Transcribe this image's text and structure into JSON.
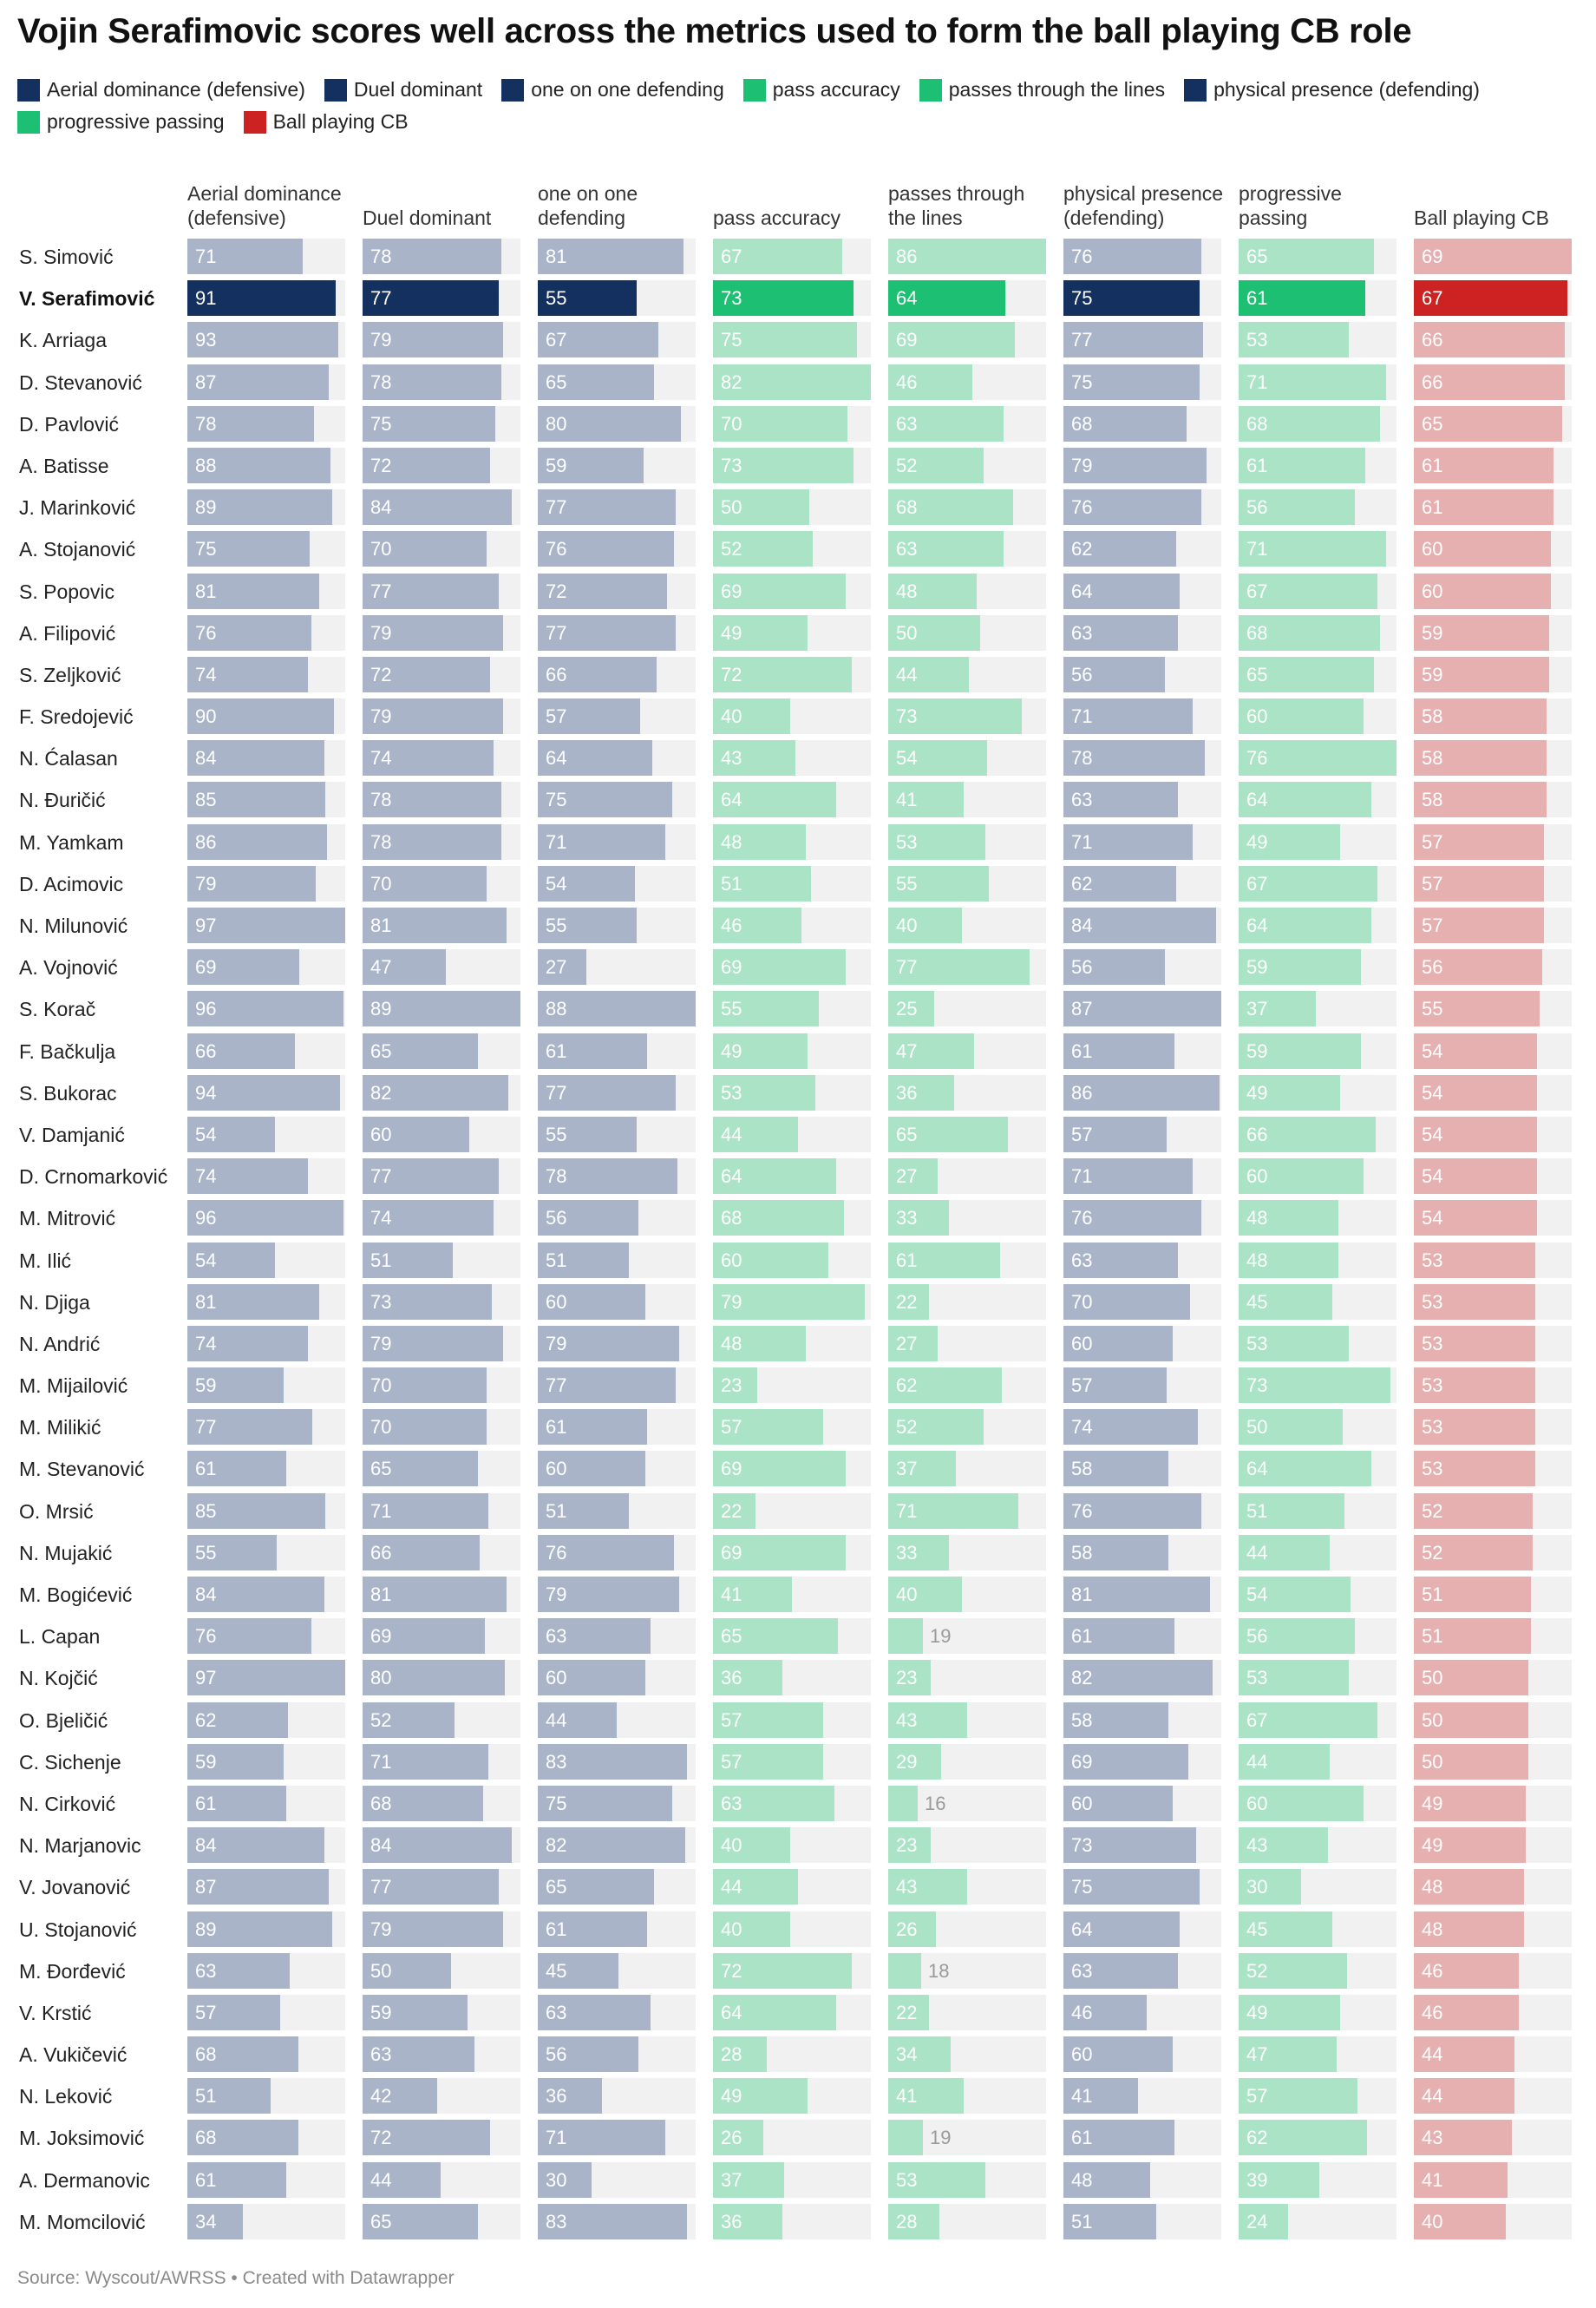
{
  "title": "Vojin Serafimovic scores well across the metrics used to form the ball playing CB role",
  "source": "Source: Wyscout/AWRSS • Created with Datawrapper",
  "colors": {
    "dark_navy": "#14305e",
    "muted_navy": "#aab4c8",
    "bright_green": "#1dbf73",
    "muted_green": "#abe3c6",
    "bright_red": "#cc2222",
    "muted_red": "#e6b0b0",
    "track": "#f1f1f1"
  },
  "legend": [
    {
      "label": "Aerial dominance (defensive)",
      "color": "#14305e"
    },
    {
      "label": "Duel dominant",
      "color": "#14305e"
    },
    {
      "label": "one on one defending",
      "color": "#14305e"
    },
    {
      "label": "pass accuracy",
      "color": "#1dbf73"
    },
    {
      "label": "passes through the lines",
      "color": "#1dbf73"
    },
    {
      "label": "physical presence (defending)",
      "color": "#14305e"
    },
    {
      "label": "progressive passing",
      "color": "#1dbf73"
    },
    {
      "label": "Ball playing CB",
      "color": "#cc2222"
    }
  ],
  "chart_data": {
    "type": "table",
    "highlight_player": "V. Serafimović",
    "columns": [
      {
        "label": "Aerial dominance (defensive)",
        "group": "defending",
        "max": 97
      },
      {
        "label": "Duel dominant",
        "group": "defending",
        "max": 89
      },
      {
        "label": "one on one defending",
        "group": "defending",
        "max": 88
      },
      {
        "label": "pass accuracy",
        "group": "passing",
        "max": 82
      },
      {
        "label": "passes through the lines",
        "group": "passing",
        "max": 86
      },
      {
        "label": "physical presence (defending)",
        "group": "defending",
        "max": 87
      },
      {
        "label": "progressive passing",
        "group": "passing",
        "max": 76
      },
      {
        "label": "Ball playing CB",
        "group": "role",
        "max": 69
      }
    ],
    "rows": [
      {
        "name": "S. Simović",
        "values": [
          71,
          78,
          81,
          67,
          86,
          76,
          65,
          69
        ]
      },
      {
        "name": "V. Serafimović",
        "values": [
          91,
          77,
          55,
          73,
          64,
          75,
          61,
          67
        ]
      },
      {
        "name": "K. Arriaga",
        "values": [
          93,
          79,
          67,
          75,
          69,
          77,
          53,
          66
        ]
      },
      {
        "name": "D. Stevanović",
        "values": [
          87,
          78,
          65,
          82,
          46,
          75,
          71,
          66
        ]
      },
      {
        "name": "D. Pavlović",
        "values": [
          78,
          75,
          80,
          70,
          63,
          68,
          68,
          65
        ]
      },
      {
        "name": "A. Batisse",
        "values": [
          88,
          72,
          59,
          73,
          52,
          79,
          61,
          61
        ]
      },
      {
        "name": "J. Marinković",
        "values": [
          89,
          84,
          77,
          50,
          68,
          76,
          56,
          61
        ]
      },
      {
        "name": "A. Stojanović",
        "values": [
          75,
          70,
          76,
          52,
          63,
          62,
          71,
          60
        ]
      },
      {
        "name": "S. Popovic",
        "values": [
          81,
          77,
          72,
          69,
          48,
          64,
          67,
          60
        ]
      },
      {
        "name": "A. Filipović",
        "values": [
          76,
          79,
          77,
          49,
          50,
          63,
          68,
          59
        ]
      },
      {
        "name": "S. Zeljković",
        "values": [
          74,
          72,
          66,
          72,
          44,
          56,
          65,
          59
        ]
      },
      {
        "name": "F. Sredojević",
        "values": [
          90,
          79,
          57,
          40,
          73,
          71,
          60,
          58
        ]
      },
      {
        "name": "N. Ćalasan",
        "values": [
          84,
          74,
          64,
          43,
          54,
          78,
          76,
          58
        ]
      },
      {
        "name": "N. Đuričić",
        "values": [
          85,
          78,
          75,
          64,
          41,
          63,
          64,
          58
        ]
      },
      {
        "name": "M. Yamkam",
        "values": [
          86,
          78,
          71,
          48,
          53,
          71,
          49,
          57
        ]
      },
      {
        "name": "D. Acimovic",
        "values": [
          79,
          70,
          54,
          51,
          55,
          62,
          67,
          57
        ]
      },
      {
        "name": "N. Milunović",
        "values": [
          97,
          81,
          55,
          46,
          40,
          84,
          64,
          57
        ]
      },
      {
        "name": "A. Vojnović",
        "values": [
          69,
          47,
          27,
          69,
          77,
          56,
          59,
          56
        ]
      },
      {
        "name": "S. Korač",
        "values": [
          96,
          89,
          88,
          55,
          25,
          87,
          37,
          55
        ]
      },
      {
        "name": "F. Bačkulja",
        "values": [
          66,
          65,
          61,
          49,
          47,
          61,
          59,
          54
        ]
      },
      {
        "name": "S. Bukorac",
        "values": [
          94,
          82,
          77,
          53,
          36,
          86,
          49,
          54
        ]
      },
      {
        "name": "V. Damjanić",
        "values": [
          54,
          60,
          55,
          44,
          65,
          57,
          66,
          54
        ]
      },
      {
        "name": "D. Crnomarković",
        "values": [
          74,
          77,
          78,
          64,
          27,
          71,
          60,
          54
        ]
      },
      {
        "name": "M. Mitrović",
        "values": [
          96,
          74,
          56,
          68,
          33,
          76,
          48,
          54
        ]
      },
      {
        "name": "M. Ilić",
        "values": [
          54,
          51,
          51,
          60,
          61,
          63,
          48,
          53
        ]
      },
      {
        "name": "N. Djiga",
        "values": [
          81,
          73,
          60,
          79,
          22,
          70,
          45,
          53
        ]
      },
      {
        "name": "N. Andrić",
        "values": [
          74,
          79,
          79,
          48,
          27,
          60,
          53,
          53
        ]
      },
      {
        "name": "M. Mijailović",
        "values": [
          59,
          70,
          77,
          23,
          62,
          57,
          73,
          53
        ]
      },
      {
        "name": "M. Milikić",
        "values": [
          77,
          70,
          61,
          57,
          52,
          74,
          50,
          53
        ]
      },
      {
        "name": "M. Stevanović",
        "values": [
          61,
          65,
          60,
          69,
          37,
          58,
          64,
          53
        ]
      },
      {
        "name": "O. Mrsić",
        "values": [
          85,
          71,
          51,
          22,
          71,
          76,
          51,
          52
        ]
      },
      {
        "name": "N. Mujakić",
        "values": [
          55,
          66,
          76,
          69,
          33,
          58,
          44,
          52
        ]
      },
      {
        "name": "M. Bogićević",
        "values": [
          84,
          81,
          79,
          41,
          40,
          81,
          54,
          51
        ]
      },
      {
        "name": "L. Capan",
        "values": [
          76,
          69,
          63,
          65,
          19,
          61,
          56,
          51
        ]
      },
      {
        "name": "N. Kojčić",
        "values": [
          97,
          80,
          60,
          36,
          23,
          82,
          53,
          50
        ]
      },
      {
        "name": "O. Bjeličić",
        "values": [
          62,
          52,
          44,
          57,
          43,
          58,
          67,
          50
        ]
      },
      {
        "name": "C. Sichenje",
        "values": [
          59,
          71,
          83,
          57,
          29,
          69,
          44,
          50
        ]
      },
      {
        "name": "N. Cirković",
        "values": [
          61,
          68,
          75,
          63,
          16,
          60,
          60,
          49
        ]
      },
      {
        "name": "N. Marjanovic",
        "values": [
          84,
          84,
          82,
          40,
          23,
          73,
          43,
          49
        ]
      },
      {
        "name": "V. Jovanović",
        "values": [
          87,
          77,
          65,
          44,
          43,
          75,
          30,
          48
        ]
      },
      {
        "name": "U. Stojanović",
        "values": [
          89,
          79,
          61,
          40,
          26,
          64,
          45,
          48
        ]
      },
      {
        "name": "M. Đorđević",
        "values": [
          63,
          50,
          45,
          72,
          18,
          63,
          52,
          46
        ]
      },
      {
        "name": "V. Krstić",
        "values": [
          57,
          59,
          63,
          64,
          22,
          46,
          49,
          46
        ]
      },
      {
        "name": "A. Vukičević",
        "values": [
          68,
          63,
          56,
          28,
          34,
          60,
          47,
          44
        ]
      },
      {
        "name": "N. Leković",
        "values": [
          51,
          42,
          36,
          49,
          41,
          41,
          57,
          44
        ]
      },
      {
        "name": "M. Joksimović",
        "values": [
          68,
          72,
          71,
          26,
          19,
          61,
          62,
          43
        ]
      },
      {
        "name": "A. Dermanovic",
        "values": [
          61,
          44,
          30,
          37,
          53,
          48,
          39,
          41
        ]
      },
      {
        "name": "M. Momcilović",
        "values": [
          34,
          65,
          83,
          36,
          28,
          51,
          24,
          40
        ]
      }
    ]
  }
}
